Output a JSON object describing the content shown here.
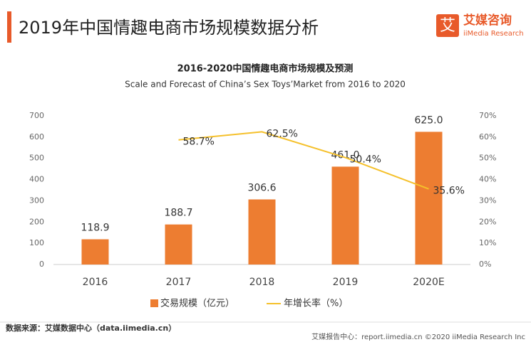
{
  "header": {
    "title": "2019年中国情趣电商市场规模数据分析",
    "logo_icon": "艾",
    "logo_name": "艾媒咨询",
    "logo_sub": "iiMedia Research"
  },
  "chart_data": {
    "type": "bar",
    "title": "2016-2020中国情趣电商市场规模及预测",
    "subtitle": "Scale and Forecast of China’s Sex Toys’Market from 2016 to 2020",
    "categories": [
      "2016",
      "2017",
      "2018",
      "2019",
      "2020E"
    ],
    "series": [
      {
        "name": "交易规模（亿元）",
        "type": "bar",
        "color": "#ed7d31",
        "values": [
          118.9,
          188.7,
          306.6,
          461.0,
          625.0
        ],
        "value_labels": [
          "118.9",
          "188.7",
          "306.6",
          "461.0",
          "625.0"
        ]
      },
      {
        "name": "年增长率（%）",
        "type": "line",
        "axis": "y2",
        "color": "#f5c02a",
        "values": [
          null,
          58.7,
          62.5,
          50.4,
          35.6
        ],
        "value_labels": [
          null,
          "58.7%",
          "62.5%",
          "50.4%",
          "35.6%"
        ]
      }
    ],
    "ylim": [
      0,
      700
    ],
    "yticks": [
      0,
      100,
      200,
      300,
      400,
      500,
      600,
      700
    ],
    "y2lim": [
      0,
      70
    ],
    "y2ticks": [
      {
        "value": 0,
        "label": "0%"
      },
      {
        "value": 10,
        "label": "10%"
      },
      {
        "value": 20,
        "label": "20%"
      },
      {
        "value": 30,
        "label": "30%"
      },
      {
        "value": 40,
        "label": "40%"
      },
      {
        "value": 50,
        "label": "50%"
      },
      {
        "value": 60,
        "label": "60%"
      },
      {
        "value": 70,
        "label": "70%"
      }
    ],
    "grid": false
  },
  "footer": {
    "source": "数据来源：艾媒数据中心（data.iimedia.cn）",
    "credit": "艾媒报告中心：report.iimedia.cn ©2020  iiMedia Research Inc"
  }
}
